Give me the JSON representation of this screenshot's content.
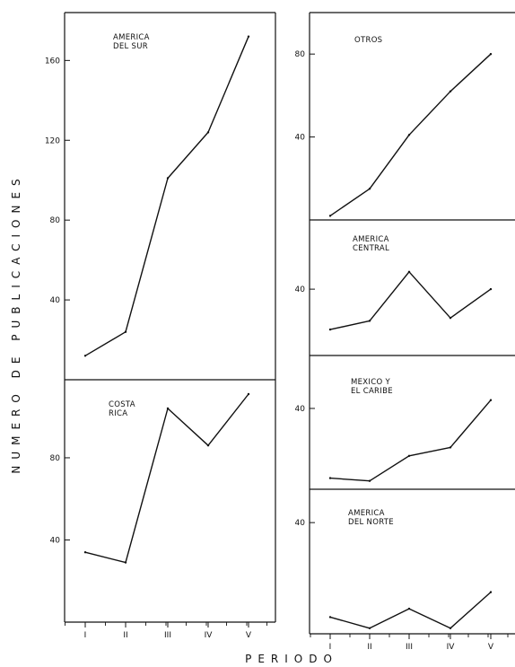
{
  "chart_data": [
    {
      "type": "line",
      "panel": "left-top",
      "title": "AMERICA DEL SUR",
      "title_lines": [
        "AMERICA",
        "DEL SUR"
      ],
      "categories": [
        "I",
        "II",
        "III",
        "IV",
        "V"
      ],
      "values": [
        12,
        24,
        101,
        124,
        172
      ],
      "ylim": [
        0,
        184
      ],
      "yticks": [
        40,
        80,
        120,
        160
      ]
    },
    {
      "type": "line",
      "panel": "left-bottom",
      "title": "COSTA RICA",
      "title_lines": [
        "COSTA",
        "RICA"
      ],
      "categories": [
        "I",
        "II",
        "III",
        "IV",
        "V"
      ],
      "values": [
        34,
        29,
        104,
        86,
        111
      ],
      "ylim": [
        0,
        118
      ],
      "yticks": [
        40,
        80
      ]
    },
    {
      "type": "line",
      "panel": "right-1",
      "title": "OTROS",
      "title_lines": [
        "OTROS"
      ],
      "categories": [
        "I",
        "II",
        "III",
        "IV",
        "V"
      ],
      "values": [
        2,
        15,
        41,
        62,
        80
      ],
      "ylim": [
        0,
        100
      ],
      "yticks": [
        40,
        80
      ]
    },
    {
      "type": "line",
      "panel": "right-2",
      "title": "AMERICA CENTRAL",
      "title_lines": [
        "AMERICA",
        "CENTRAL"
      ],
      "categories": [
        "I",
        "II",
        "III",
        "IV",
        "V"
      ],
      "values": [
        26,
        29,
        46,
        30,
        40
      ],
      "ylim": [
        17,
        64
      ],
      "yticks": [
        40
      ]
    },
    {
      "type": "line",
      "panel": "right-3",
      "title": "MEXICO Y EL CARIBE",
      "title_lines": [
        "MEXICO  Y",
        "EL CARIBE"
      ],
      "categories": [
        "I",
        "II",
        "III",
        "IV",
        "V"
      ],
      "values": [
        15,
        14,
        23,
        26,
        43
      ],
      "ylim": [
        11,
        59
      ],
      "yticks": [
        40
      ]
    },
    {
      "type": "line",
      "panel": "right-4",
      "title": "AMERICA DEL NORTE",
      "title_lines": [
        "AMERICA",
        "DEL NORTE"
      ],
      "categories": [
        "I",
        "II",
        "III",
        "IV",
        "V"
      ],
      "values": [
        6,
        2,
        9,
        2,
        15
      ],
      "ylim": [
        0,
        52
      ],
      "yticks": [
        40
      ]
    }
  ],
  "ylabel": "NUMERO DE PUBLICACIONES",
  "xlabel": "PERIODO"
}
